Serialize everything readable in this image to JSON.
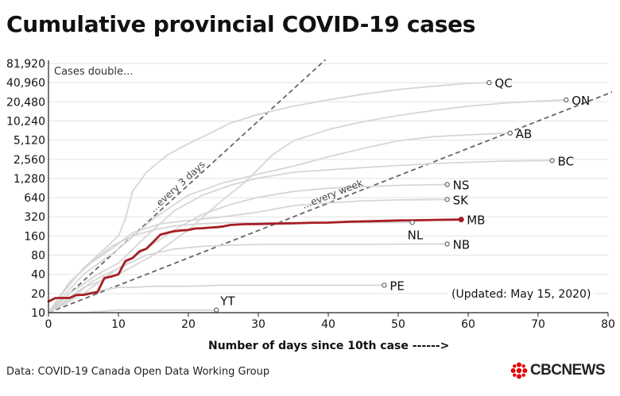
{
  "title": "Cumulative provincial COVID-19 cases",
  "source": "Data: COVID-19 Canada Open Data Working Group",
  "logo_text": "CBCNEWS",
  "colors": {
    "highlight": "#a61d24",
    "grey": "#d6d6d6",
    "dash": "#666666",
    "text": "#111111"
  },
  "chart_data": {
    "type": "line",
    "xlabel": "Number of days since 10th case ------>",
    "ylabel": "",
    "scale_y": "log2",
    "xlim": [
      0,
      80
    ],
    "ylim": [
      10,
      81920
    ],
    "x_ticks": [
      0,
      10,
      20,
      30,
      40,
      50,
      60,
      70,
      80
    ],
    "y_ticks": [
      10,
      20,
      40,
      80,
      160,
      320,
      640,
      1280,
      2560,
      5120,
      10240,
      20480,
      40960,
      81920
    ],
    "y_tick_labels": [
      "10",
      "20",
      "40",
      "80",
      "160",
      "320",
      "640",
      "1,280",
      "2,560",
      "5,120",
      "10,240",
      "20,480",
      "40,960",
      "81,920"
    ],
    "grid": true,
    "annotations": {
      "double_label": "Cases double...",
      "every3_label": "...every 3 days",
      "everyweek_label": "...every week",
      "updated": "(Updated: May 15, 2020)"
    },
    "reference_lines": [
      {
        "label": "...every 3 days",
        "doubling_days": 3
      },
      {
        "label": "...every week",
        "doubling_days": 7
      }
    ],
    "series": [
      {
        "name": "QC",
        "highlight": false,
        "x": [
          0,
          2,
          5,
          8,
          10,
          11,
          12,
          14,
          17,
          20,
          23,
          26,
          30,
          35,
          40,
          45,
          50,
          55,
          60,
          63
        ],
        "y": [
          10,
          20,
          50,
          100,
          160,
          300,
          800,
          1600,
          3000,
          4500,
          6500,
          9500,
          13000,
          17500,
          22000,
          27000,
          32000,
          36000,
          40000,
          41000
        ]
      },
      {
        "name": "ON",
        "highlight": false,
        "x": [
          0,
          5,
          10,
          15,
          20,
          25,
          28,
          30,
          32,
          35,
          40,
          45,
          50,
          55,
          60,
          65,
          70,
          74
        ],
        "y": [
          10,
          25,
          40,
          80,
          200,
          600,
          1100,
          1800,
          3000,
          5000,
          7500,
          10000,
          12500,
          15000,
          17500,
          19500,
          21000,
          22000
        ]
      },
      {
        "name": "AB",
        "highlight": false,
        "x": [
          0,
          5,
          10,
          15,
          20,
          25,
          30,
          35,
          40,
          45,
          50,
          55,
          60,
          66
        ],
        "y": [
          10,
          40,
          100,
          300,
          700,
          1100,
          1500,
          2000,
          2800,
          3800,
          5000,
          5800,
          6200,
          6600
        ]
      },
      {
        "name": "BC",
        "highlight": false,
        "x": [
          0,
          3,
          7,
          10,
          14,
          18,
          22,
          26,
          30,
          35,
          40,
          45,
          50,
          55,
          60,
          65,
          72
        ],
        "y": [
          10,
          20,
          40,
          60,
          160,
          400,
          700,
          1000,
          1300,
          1600,
          1750,
          1900,
          2050,
          2200,
          2300,
          2400,
          2450
        ]
      },
      {
        "name": "NS",
        "highlight": false,
        "x": [
          0,
          5,
          10,
          15,
          18,
          22,
          26,
          30,
          35,
          40,
          45,
          50,
          57
        ],
        "y": [
          10,
          20,
          50,
          120,
          200,
          350,
          500,
          650,
          800,
          900,
          950,
          1000,
          1030
        ]
      },
      {
        "name": "SK",
        "highlight": false,
        "x": [
          0,
          3,
          6,
          9,
          12,
          16,
          20,
          25,
          30,
          35,
          40,
          45,
          50,
          57
        ],
        "y": [
          10,
          30,
          60,
          100,
          180,
          250,
          280,
          320,
          380,
          480,
          530,
          570,
          590,
          600
        ]
      },
      {
        "name": "NL",
        "highlight": false,
        "x": [
          0,
          3,
          6,
          9,
          12,
          15,
          18,
          22,
          26,
          30,
          35,
          40,
          45,
          52
        ],
        "y": [
          10,
          30,
          60,
          110,
          160,
          200,
          230,
          250,
          260,
          258,
          258,
          260,
          260,
          261
        ]
      },
      {
        "name": "NB",
        "highlight": false,
        "x": [
          0,
          3,
          6,
          10,
          14,
          18,
          22,
          26,
          30,
          40,
          50,
          57
        ],
        "y": [
          10,
          15,
          30,
          50,
          80,
          100,
          110,
          115,
          118,
          118,
          119,
          120
        ]
      },
      {
        "name": "PE",
        "highlight": false,
        "x": [
          0,
          2,
          5,
          8,
          10,
          12,
          15,
          20,
          25,
          30,
          40,
          48
        ],
        "y": [
          10,
          14,
          20,
          23,
          25,
          25,
          26,
          26,
          27,
          27,
          27,
          27
        ]
      },
      {
        "name": "YT",
        "highlight": false,
        "x": [
          0,
          5,
          10,
          15,
          20,
          24
        ],
        "y": [
          10,
          10,
          11,
          11,
          11,
          11
        ]
      },
      {
        "name": "MB",
        "highlight": true,
        "x": [
          0,
          1,
          2,
          3,
          4,
          5,
          6,
          7,
          8,
          9,
          10,
          11,
          12,
          13,
          14,
          15,
          16,
          17,
          18,
          19,
          20,
          21,
          22,
          23,
          24,
          25,
          26,
          28,
          30,
          32,
          35,
          38,
          40,
          43,
          46,
          50,
          53,
          56,
          59
        ],
        "y": [
          15,
          17,
          17,
          17,
          19,
          19,
          20,
          21,
          35,
          37,
          40,
          65,
          72,
          92,
          101,
          130,
          168,
          180,
          190,
          196,
          199,
          210,
          212,
          216,
          220,
          226,
          238,
          245,
          247,
          250,
          253,
          259,
          260,
          268,
          273,
          281,
          283,
          287,
          290
        ]
      }
    ]
  }
}
